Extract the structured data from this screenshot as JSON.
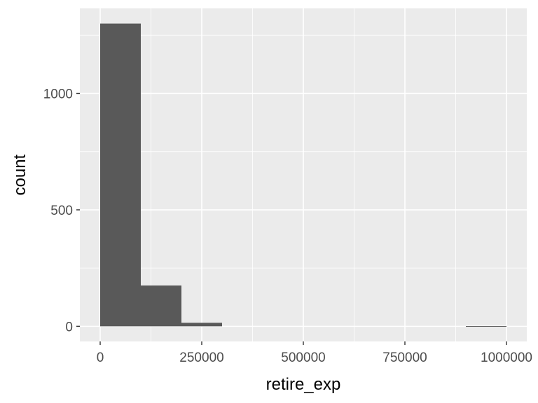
{
  "chart_data": {
    "type": "bar",
    "xlabel": "retire_exp",
    "ylabel": "count",
    "bins": [
      {
        "x0": 0,
        "x1": 100000,
        "count": 1300
      },
      {
        "x0": 100000,
        "x1": 200000,
        "count": 175
      },
      {
        "x0": 200000,
        "x1": 300000,
        "count": 15
      },
      {
        "x0": 300000,
        "x1": 400000,
        "count": 0
      },
      {
        "x0": 400000,
        "x1": 500000,
        "count": 0
      },
      {
        "x0": 500000,
        "x1": 600000,
        "count": 0
      },
      {
        "x0": 600000,
        "x1": 700000,
        "count": 0
      },
      {
        "x0": 700000,
        "x1": 800000,
        "count": 0
      },
      {
        "x0": 800000,
        "x1": 900000,
        "count": 0
      },
      {
        "x0": 900000,
        "x1": 1000000,
        "count": 1
      }
    ],
    "xticks": [
      0,
      250000,
      500000,
      750000,
      1000000
    ],
    "xtick_labels": [
      "0",
      "250000",
      "500000",
      "750000",
      "1000000"
    ],
    "yticks": [
      0,
      500,
      1000
    ],
    "ytick_labels": [
      "0",
      "500",
      "1000"
    ],
    "xlim": [
      -50000,
      1050000
    ],
    "ylim": [
      -65,
      1365
    ],
    "grid": true,
    "colors": {
      "panel_background": "#ebebeb",
      "grid": "#ffffff",
      "bar_fill": "#595959"
    }
  }
}
